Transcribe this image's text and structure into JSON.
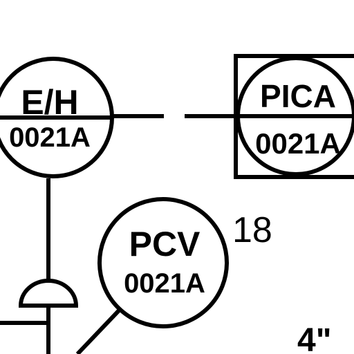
{
  "instruments": {
    "eh": {
      "function": "E/H",
      "loop": "0021A"
    },
    "pica": {
      "function": "PICA",
      "loop": "0021A"
    },
    "pcv": {
      "function": "PCV",
      "loop": "0021A"
    }
  },
  "annotations": {
    "pcv_callout": "18",
    "pipe_size": "4\""
  },
  "colors": {
    "line": "#000000",
    "background": "#ffffff"
  }
}
